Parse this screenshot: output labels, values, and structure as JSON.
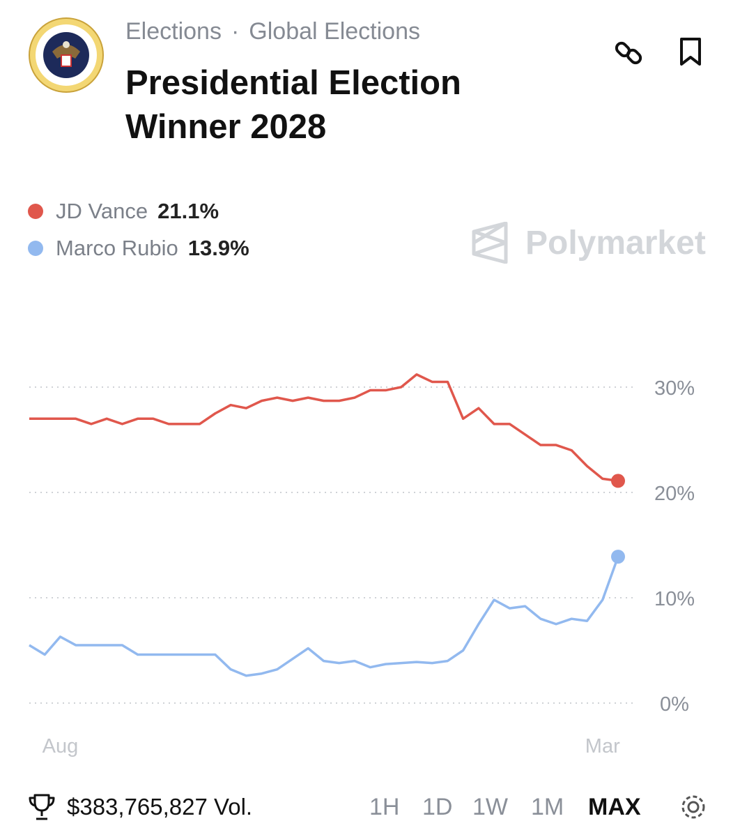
{
  "header": {
    "breadcrumb": [
      "Elections",
      "Global Elections"
    ],
    "title": "Presidential Election Winner 2028"
  },
  "watermark": "Polymarket",
  "chart_data": {
    "type": "line",
    "categories": [
      null,
      null,
      "Aug",
      null,
      null,
      null,
      null,
      null,
      null,
      null,
      null,
      null,
      null,
      null,
      null,
      null,
      null,
      null,
      null,
      null,
      null,
      null,
      null,
      null,
      null,
      null,
      null,
      null,
      null,
      null,
      null,
      null,
      null,
      null,
      null,
      null,
      null,
      "Mar",
      null
    ],
    "series": [
      {
        "name": "JD Vance",
        "color": "#e0574c",
        "legend_value": "21.1%",
        "values": [
          27,
          27,
          27,
          27,
          26.5,
          27,
          26.5,
          27,
          27,
          26.5,
          26.5,
          26.5,
          27.5,
          28.3,
          28,
          28.7,
          29,
          28.7,
          29,
          28.7,
          28.7,
          29,
          29.7,
          29.7,
          30,
          31.2,
          30.5,
          30.5,
          27,
          28,
          26.5,
          26.5,
          25.5,
          24.5,
          24.5,
          24,
          22.5,
          21.3,
          21.1
        ]
      },
      {
        "name": "Marco Rubio",
        "color": "#92b9ef",
        "legend_value": "13.9%",
        "values": [
          5.5,
          4.6,
          6.3,
          5.5,
          5.5,
          5.5,
          5.5,
          4.6,
          4.6,
          4.6,
          4.6,
          4.6,
          4.6,
          3.2,
          2.6,
          2.8,
          3.2,
          4.2,
          5.2,
          4.0,
          3.8,
          4.0,
          3.4,
          3.7,
          3.8,
          3.9,
          3.8,
          4.0,
          5.0,
          7.5,
          9.8,
          9.0,
          9.2,
          8.0,
          7.5,
          8.0,
          7.8,
          9.8,
          13.9
        ]
      }
    ],
    "ylim": [
      0,
      32
    ],
    "yticks": [
      {
        "value": 0,
        "label": "0%"
      },
      {
        "value": 10,
        "label": "10%"
      },
      {
        "value": 20,
        "label": "20%"
      },
      {
        "value": 30,
        "label": "30%"
      }
    ],
    "grid": true
  },
  "footer": {
    "volume": "$383,765,827 Vol.",
    "ranges": [
      "1H",
      "1D",
      "1W",
      "1M",
      "MAX"
    ],
    "active_range": "MAX"
  }
}
